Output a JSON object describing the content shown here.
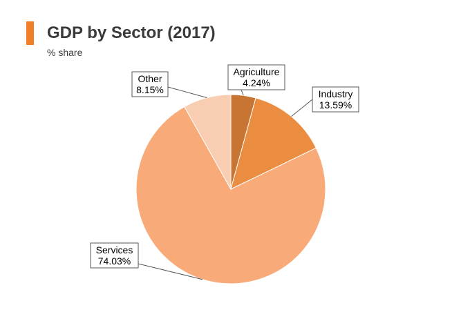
{
  "header": {
    "title": "GDP by Sector (2017)",
    "subtitle": "% share"
  },
  "colors": {
    "accent": "#f07e26"
  },
  "chart_data": {
    "type": "pie",
    "title": "GDP by Sector (2017)",
    "subtitle": "% share",
    "start": "12 o'clock",
    "direction": "clockwise",
    "slices": [
      {
        "label": "Agriculture",
        "value": 4.24,
        "value_text": "4.24%",
        "color": "#c87533"
      },
      {
        "label": "Industry",
        "value": 13.59,
        "value_text": "13.59%",
        "color": "#ea8d41"
      },
      {
        "label": "Services",
        "value": 74.03,
        "value_text": "74.03%",
        "color": "#f8ab79"
      },
      {
        "label": "Other",
        "value": 8.15,
        "value_text": "8.15%",
        "color": "#f9cdb2"
      }
    ]
  }
}
